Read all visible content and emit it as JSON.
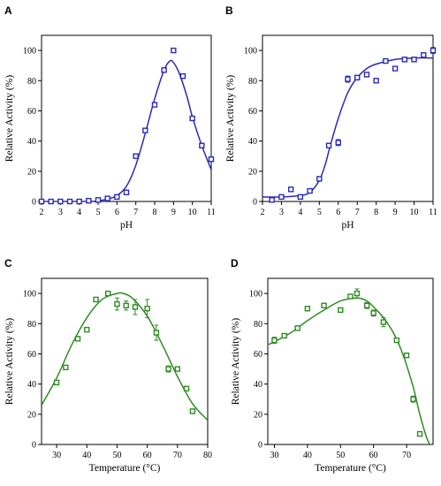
{
  "chart_data": [
    {
      "panel": "A",
      "type": "scatter",
      "xlabel": "pH",
      "ylabel": "Relative Activity (%)",
      "xlim": [
        2,
        11
      ],
      "ylim": [
        0,
        110
      ],
      "xticks": [
        "2",
        "3",
        "4",
        "5",
        "6",
        "7",
        "8",
        "9",
        "10",
        "11"
      ],
      "xtick_values": [
        2,
        3,
        4,
        5,
        6,
        7,
        8,
        9,
        10,
        11
      ],
      "yticks": [
        "0",
        "20",
        "40",
        "60",
        "80",
        "100"
      ],
      "ytick_values": [
        0,
        20,
        40,
        60,
        80,
        100
      ],
      "color": "#2b2bb5",
      "marker": "square",
      "points": {
        "x": [
          2.0,
          2.5,
          3.0,
          3.5,
          4.0,
          4.5,
          5.0,
          5.5,
          6.0,
          6.5,
          7.0,
          7.5,
          8.0,
          8.5,
          9.0,
          9.5,
          10.0,
          10.5,
          11.0
        ],
        "y": [
          0,
          0,
          0,
          0,
          0,
          0.5,
          1,
          2,
          3,
          6,
          30,
          47,
          64,
          87,
          100,
          83,
          55,
          37,
          28
        ]
      },
      "fit_curve": {
        "x": [
          2.0,
          4.5,
          5.0,
          5.5,
          6.0,
          6.5,
          7.0,
          7.5,
          8.0,
          8.5,
          8.8,
          9.0,
          9.3,
          9.7,
          10.0,
          10.5,
          11.0
        ],
        "y": [
          0,
          0,
          0.5,
          1.5,
          4,
          10,
          24,
          45,
          68,
          87,
          93,
          92,
          85,
          70,
          56,
          37,
          21
        ]
      }
    },
    {
      "panel": "B",
      "type": "scatter",
      "xlabel": "pH",
      "ylabel": "Relative Activity (%)",
      "xlim": [
        2,
        11
      ],
      "ylim": [
        0,
        110
      ],
      "xticks": [
        "2",
        "3",
        "4",
        "5",
        "6",
        "7",
        "8",
        "9",
        "10",
        "11"
      ],
      "xtick_values": [
        2,
        3,
        4,
        5,
        6,
        7,
        8,
        9,
        10,
        11
      ],
      "yticks": [
        "0",
        "20",
        "40",
        "60",
        "80",
        "100"
      ],
      "ytick_values": [
        0,
        20,
        40,
        60,
        80,
        100
      ],
      "color": "#2b2bb5",
      "marker": "square",
      "points": {
        "x": [
          2.5,
          3.0,
          3.5,
          4.0,
          4.5,
          5.0,
          5.5,
          6.0,
          6.5,
          7.0,
          7.5,
          8.0,
          8.5,
          9.0,
          9.5,
          10.0,
          10.5,
          11.0
        ],
        "y": [
          1,
          3,
          8,
          3,
          7,
          15,
          37,
          39,
          81,
          82,
          84,
          80,
          93,
          88,
          94,
          94,
          97,
          100
        ],
        "yerr": [
          0,
          0,
          0,
          0,
          0,
          0,
          0,
          2,
          2,
          0,
          0,
          0,
          0,
          0,
          1.5,
          1.5,
          0,
          2
        ]
      },
      "fit_curve": {
        "x": [
          2.0,
          3.0,
          4.0,
          4.5,
          5.0,
          5.3,
          5.6,
          6.0,
          6.5,
          7.0,
          7.5,
          8.0,
          9.0,
          10.0,
          11.0
        ],
        "y": [
          3,
          3,
          4,
          6,
          14,
          24,
          38,
          55,
          72,
          82,
          88,
          91,
          94,
          95,
          95
        ]
      }
    },
    {
      "panel": "C",
      "type": "scatter",
      "xlabel": "Temperature (°C)",
      "ylabel": "Relative Activity (%)",
      "xlim": [
        25,
        80
      ],
      "ylim": [
        0,
        110
      ],
      "xticks": [
        "30",
        "40",
        "50",
        "60",
        "70",
        "80"
      ],
      "xtick_values": [
        30,
        40,
        50,
        60,
        70,
        80
      ],
      "yticks": [
        "0",
        "20",
        "40",
        "60",
        "80",
        "100"
      ],
      "ytick_values": [
        0,
        20,
        40,
        60,
        80,
        100
      ],
      "color": "#2e8b22",
      "marker": "square",
      "points": {
        "x": [
          30,
          33,
          37,
          40,
          43,
          47,
          50,
          53,
          56,
          60,
          63,
          67,
          70,
          73,
          75
        ],
        "y": [
          41,
          51,
          70,
          76,
          96,
          100,
          93,
          92,
          91,
          90,
          74,
          50,
          50,
          37,
          22
        ],
        "yerr": [
          0,
          0,
          0,
          0,
          0,
          0,
          4,
          3,
          5,
          6,
          5,
          2,
          0,
          0,
          1.5
        ]
      },
      "fit_curve": {
        "x": [
          25,
          30,
          35,
          40,
          45,
          50,
          52,
          55,
          60,
          65,
          70,
          75,
          80
        ],
        "y": [
          26,
          44,
          66,
          84,
          96,
          100,
          100,
          97,
          85,
          66,
          45,
          27,
          16
        ]
      }
    },
    {
      "panel": "D",
      "type": "scatter",
      "xlabel": "Temperature (°C)",
      "ylabel": "Relative Activity (%)",
      "xlim": [
        28,
        78
      ],
      "ylim": [
        0,
        110
      ],
      "xticks": [
        "30",
        "40",
        "50",
        "60",
        "70"
      ],
      "xtick_values": [
        30,
        40,
        50,
        60,
        70
      ],
      "yticks": [
        "0",
        "20",
        "40",
        "60",
        "80",
        "100"
      ],
      "ytick_values": [
        0,
        20,
        40,
        60,
        80,
        100
      ],
      "color": "#2e8b22",
      "marker": "square",
      "points": {
        "x": [
          30,
          33,
          37,
          40,
          45,
          50,
          53,
          55,
          58,
          60,
          63,
          67,
          70,
          72,
          74
        ],
        "y": [
          69,
          72,
          77,
          90,
          92,
          89,
          98,
          100,
          92,
          87,
          81,
          69,
          59,
          30,
          7
        ],
        "yerr": [
          2,
          0,
          1.5,
          1.5,
          0,
          0,
          0,
          3,
          2,
          2,
          3,
          1,
          0,
          2,
          0
        ]
      },
      "fit_curve": {
        "x": [
          28,
          30,
          35,
          40,
          45,
          50,
          55,
          58,
          60,
          63,
          66,
          69,
          72,
          74,
          76,
          77
        ],
        "y": [
          66,
          68,
          74,
          82,
          89,
          95,
          97,
          95,
          91,
          84,
          74,
          59,
          38,
          20,
          5,
          0
        ]
      }
    }
  ]
}
